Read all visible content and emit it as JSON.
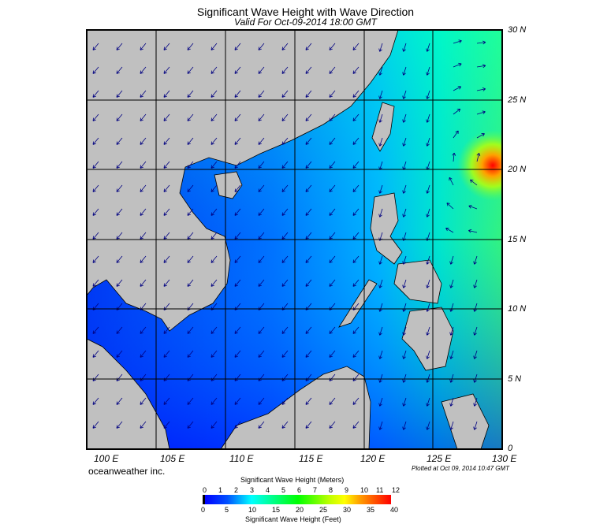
{
  "title": "Significant Wave Height with Wave Direction",
  "subtitle": "Valid For Oct-09-2014 18:00 GMT",
  "lat_labels": [
    "30 N",
    "25 N",
    "20 N",
    "15 N",
    "10 N",
    "5 N",
    "0"
  ],
  "lon_labels": [
    "100 E",
    "105 E",
    "110 E",
    "115 E",
    "120 E",
    "125 E",
    "130 E"
  ],
  "credit": "oceanweather inc.",
  "plotted": "Plotted at Oct 09, 2014 10:47 GMT",
  "colorbar": {
    "meters_title": "Significant Wave Height (Meters)",
    "meters_ticks": [
      "0",
      "1",
      "2",
      "3",
      "4",
      "5",
      "6",
      "7",
      "8",
      "9",
      "10",
      "11",
      "12"
    ],
    "feet_ticks": [
      "0",
      "5",
      "10",
      "15",
      "20",
      "25",
      "30",
      "35",
      "40"
    ],
    "feet_title": "Significant Wave Height (Feet)",
    "colors": [
      "#000000",
      "#0000ff",
      "#0080ff",
      "#00ffff",
      "#00ff80",
      "#00ff00",
      "#c0ff00",
      "#ffff00",
      "#ffa000",
      "#ff0000"
    ]
  },
  "colors": {
    "land": "#c0c0c0",
    "arrow": "#000080"
  }
}
